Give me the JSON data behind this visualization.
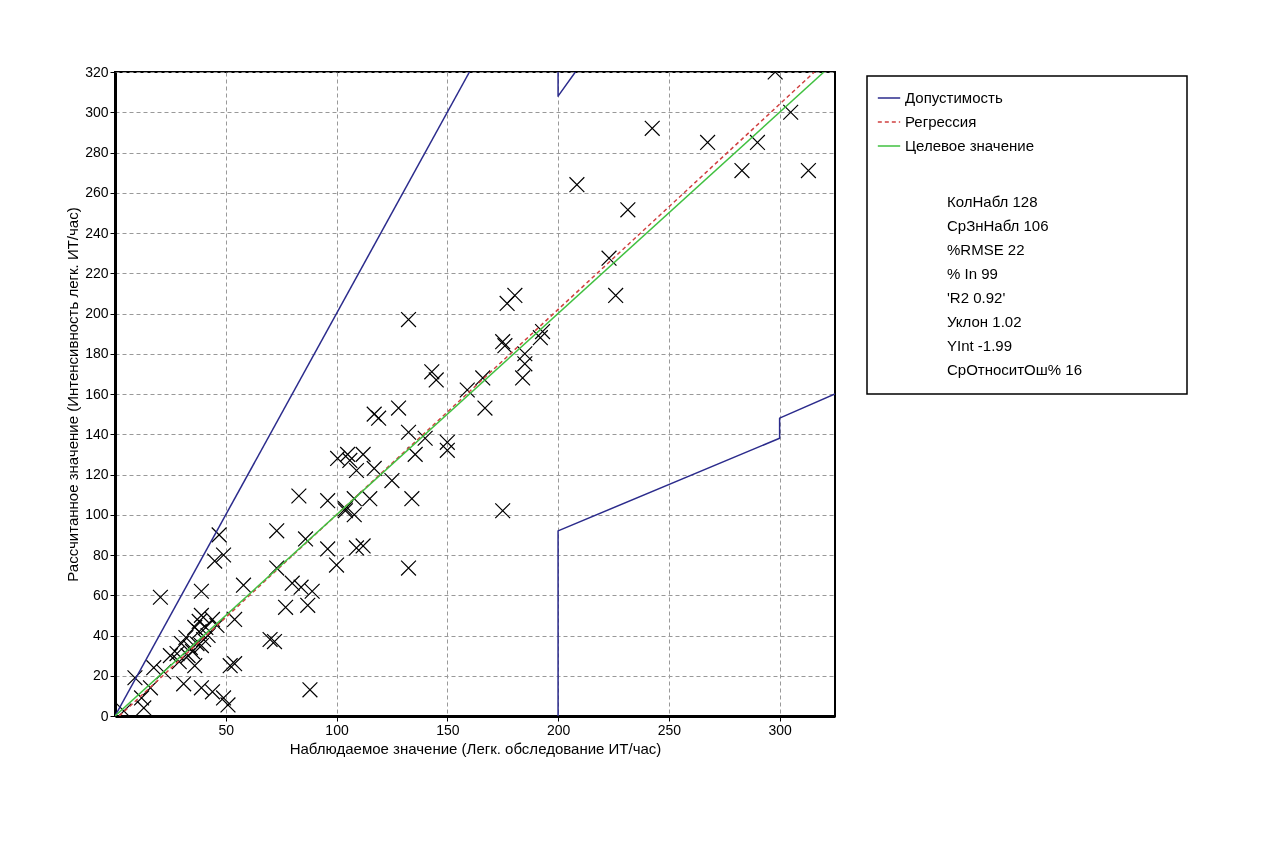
{
  "chart_data": {
    "type": "scatter",
    "xlabel": "Наблюдаемое значение (Легк. обследование ИТ/час)",
    "ylabel": "Рассчитанное значение (Интенсивность легк. ИТ/час)",
    "xlim": [
      0,
      325
    ],
    "xticks": [
      50,
      100,
      150,
      200,
      250,
      300
    ],
    "ylim": [
      0,
      320
    ],
    "yticks": [
      0,
      20,
      40,
      60,
      80,
      100,
      120,
      140,
      160,
      180,
      200,
      220,
      240,
      260,
      280,
      300,
      320
    ],
    "grid": true,
    "legend": "right",
    "annotations": [
      "КолНабл 128",
      "СрЗнНабл 106",
      "%RMSE 22",
      "% In 99",
      "'R2 0.92'",
      "Уклон 1.02",
      "YInt -1.99",
      "СрОтноситОш% 16"
    ],
    "series": [
      {
        "type": "scatter",
        "color": "#000000",
        "marker": "cross",
        "x": [
          83,
          96,
          104,
          73,
          86,
          96,
          100,
          47,
          49,
          45,
          58,
          39,
          20.5,
          73,
          80,
          84,
          89,
          77,
          87,
          39,
          38,
          54,
          70,
          72,
          32,
          38,
          41,
          30,
          34,
          25,
          39,
          29,
          17.5,
          54,
          52,
          16,
          31,
          39,
          44,
          49,
          51,
          88,
          13,
          4,
          9,
          36,
          42,
          40,
          35,
          33,
          37,
          44,
          28,
          22,
          12,
          46,
          36,
          132.5,
          175,
          176,
          185,
          184,
          143,
          145,
          166,
          159,
          167,
          117,
          119,
          128,
          132.5,
          135.5,
          150,
          150,
          140,
          105,
          106,
          112,
          117,
          109,
          125,
          134,
          100.5,
          108,
          115,
          104,
          108,
          175,
          112,
          109,
          132.5,
          298,
          305,
          290,
          267.5,
          242.5,
          313,
          283,
          208.5,
          231.5,
          223,
          226,
          193,
          192,
          180.5,
          177,
          185
        ],
        "values": [
          109.3,
          107,
          103,
          92,
          88,
          83,
          75,
          90,
          80,
          77,
          65,
          62,
          59,
          73.5,
          66,
          64,
          62,
          54,
          55,
          50,
          47,
          48,
          38,
          37,
          39,
          42,
          44,
          36,
          34,
          30,
          35,
          27,
          24,
          26,
          25,
          14,
          16,
          14,
          12,
          9,
          5.5,
          13,
          4,
          2.5,
          19,
          25,
          40,
          38,
          32,
          30,
          36,
          48,
          31,
          22,
          9,
          45,
          44,
          197,
          186,
          184,
          175,
          168,
          171,
          167,
          168,
          162,
          153,
          150,
          148,
          153,
          141,
          130,
          136,
          132,
          138,
          130,
          127,
          130,
          123,
          122,
          117,
          108,
          128,
          108,
          108,
          102,
          100,
          102,
          84.5,
          83.5,
          73.5,
          320,
          300,
          285,
          285,
          292,
          271,
          271,
          264,
          251.5,
          227.5,
          209,
          191,
          188,
          209,
          205,
          180
        ]
      },
      {
        "type": "line",
        "name": "Допустимость",
        "color": "#2b2b8c",
        "line_style": "solid",
        "x": [
          0,
          160
        ],
        "values": [
          0,
          320
        ]
      },
      {
        "type": "line",
        "color": "#2b2b8c",
        "line_style": "solid",
        "x": [
          200,
          200,
          207.8
        ],
        "values": [
          320,
          308,
          320
        ]
      },
      {
        "type": "line",
        "color": "#2b2b8c",
        "line_style": "solid",
        "x": [
          200,
          200,
          300,
          300,
          325
        ],
        "values": [
          0,
          92,
          138,
          148,
          160
        ]
      },
      {
        "type": "line",
        "name": "Регрессия",
        "color": "#d04040",
        "line_style": "dashed",
        "x": [
          1.95,
          315.7
        ],
        "values": [
          0,
          320
        ]
      },
      {
        "type": "line",
        "name": "Целевое значение",
        "color": "#40c040",
        "line_style": "solid",
        "x": [
          0,
          320
        ],
        "values": [
          0,
          320
        ]
      }
    ]
  }
}
